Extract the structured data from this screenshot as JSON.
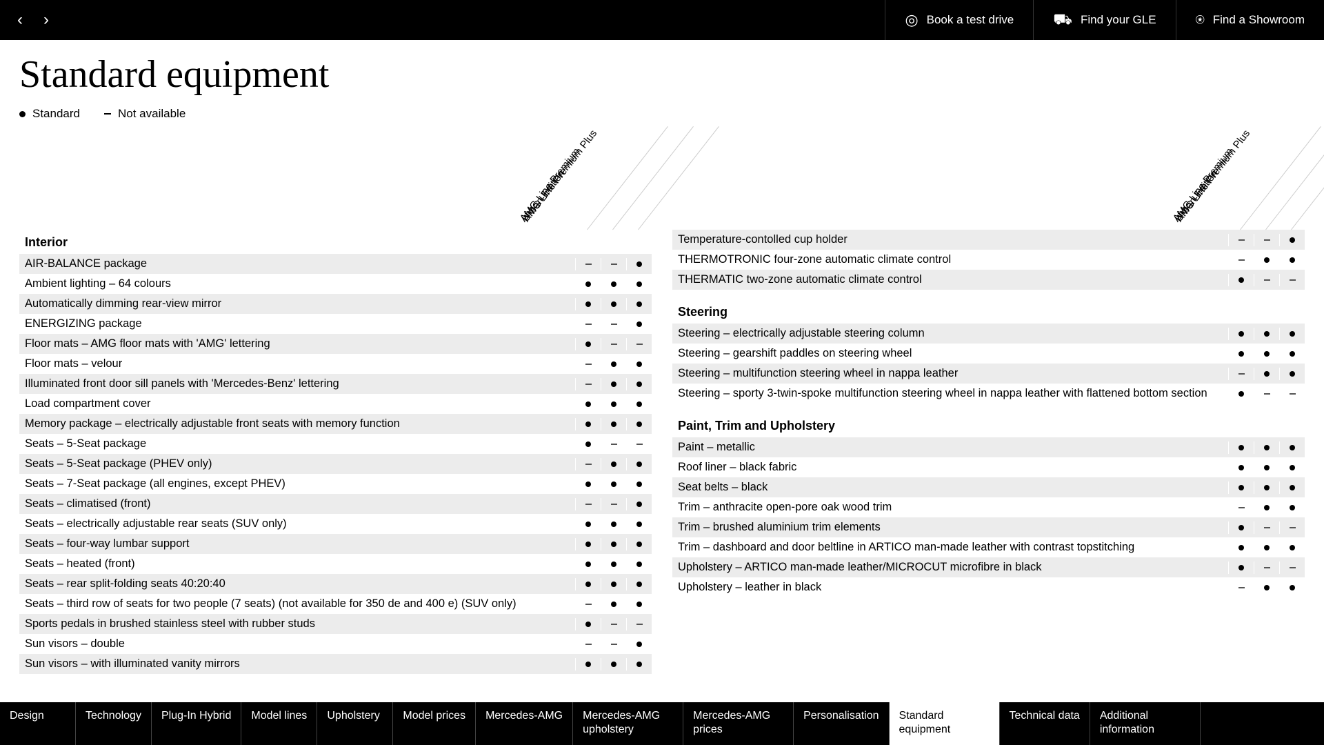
{
  "topbar": {
    "items": [
      {
        "icon": "steering",
        "label": "Book a test drive"
      },
      {
        "icon": "car-search",
        "label": "Find your GLE"
      },
      {
        "icon": "pin",
        "label": "Find a Showroom"
      }
    ]
  },
  "page_title": "Standard equipment",
  "legend": {
    "standard": "Standard",
    "not_available": "Not available"
  },
  "trim_headers": [
    "Urban Edition",
    "AMG Line Premium",
    "AMG Line Premium Plus"
  ],
  "left": {
    "sections": [
      {
        "title": "Interior",
        "rows": [
          {
            "label": "AIR-BALANCE package",
            "v": [
              "-",
              "-",
              "•"
            ]
          },
          {
            "label": "Ambient lighting – 64 colours",
            "v": [
              "•",
              "•",
              "•"
            ]
          },
          {
            "label": "Automatically dimming rear-view mirror",
            "v": [
              "•",
              "•",
              "•"
            ]
          },
          {
            "label": "ENERGIZING package",
            "v": [
              "-",
              "-",
              "•"
            ]
          },
          {
            "label": "Floor mats – AMG floor mats with 'AMG' lettering",
            "v": [
              "•",
              "-",
              "-"
            ]
          },
          {
            "label": "Floor mats – velour",
            "v": [
              "-",
              "•",
              "•"
            ]
          },
          {
            "label": "Illuminated front door sill panels with 'Mercedes-Benz' lettering",
            "v": [
              "-",
              "•",
              "•"
            ]
          },
          {
            "label": "Load compartment cover",
            "v": [
              "•",
              "•",
              "•"
            ]
          },
          {
            "label": "Memory package – electrically adjustable front seats with memory function",
            "v": [
              "•",
              "•",
              "•"
            ]
          },
          {
            "label": "Seats – 5-Seat package",
            "v": [
              "•",
              "-",
              "-"
            ]
          },
          {
            "label": "Seats – 5-Seat package (PHEV only)",
            "v": [
              "-",
              "•",
              "•"
            ]
          },
          {
            "label": "Seats – 7-Seat package (all engines, except PHEV)",
            "v": [
              "•",
              "•",
              "•"
            ]
          },
          {
            "label": "Seats – climatised (front)",
            "v": [
              "-",
              "-",
              "•"
            ]
          },
          {
            "label": "Seats – electrically adjustable rear seats (SUV only)",
            "v": [
              "•",
              "•",
              "•"
            ]
          },
          {
            "label": "Seats – four-way lumbar support",
            "v": [
              "•",
              "•",
              "•"
            ]
          },
          {
            "label": "Seats – heated (front)",
            "v": [
              "•",
              "•",
              "•"
            ]
          },
          {
            "label": "Seats – rear split-folding seats 40:20:40",
            "v": [
              "•",
              "•",
              "•"
            ]
          },
          {
            "label": "Seats – third row of seats for two people (7 seats) (not available for 350 de and 400 e) (SUV only)",
            "v": [
              "-",
              "•",
              "•"
            ]
          },
          {
            "label": "Sports pedals in brushed stainless steel with rubber studs",
            "v": [
              "•",
              "-",
              "-"
            ]
          },
          {
            "label": "Sun visors – double",
            "v": [
              "-",
              "-",
              "•"
            ]
          },
          {
            "label": "Sun visors – with illuminated vanity mirrors",
            "v": [
              "•",
              "•",
              "•"
            ]
          }
        ]
      }
    ]
  },
  "right": {
    "sections": [
      {
        "title": "",
        "rows": [
          {
            "label": "Temperature-contolled cup holder",
            "v": [
              "-",
              "-",
              "•"
            ]
          },
          {
            "label": "THERMOTRONIC four-zone automatic climate control",
            "v": [
              "-",
              "•",
              "•"
            ]
          },
          {
            "label": "THERMATIC two-zone automatic climate control",
            "v": [
              "•",
              "-",
              "-"
            ]
          }
        ]
      },
      {
        "title": "Steering",
        "rows": [
          {
            "label": "Steering – electrically adjustable steering column",
            "v": [
              "•",
              "•",
              "•"
            ]
          },
          {
            "label": "Steering – gearshift paddles on steering wheel",
            "v": [
              "•",
              "•",
              "•"
            ]
          },
          {
            "label": "Steering – multifunction steering wheel in nappa leather",
            "v": [
              "-",
              "•",
              "•"
            ]
          },
          {
            "label": "Steering – sporty 3-twin-spoke multifunction steering wheel in nappa leather with flattened bottom section",
            "v": [
              "•",
              "-",
              "-"
            ]
          }
        ]
      },
      {
        "title": "Paint, Trim and Upholstery",
        "rows": [
          {
            "label": "Paint – metallic",
            "v": [
              "•",
              "•",
              "•"
            ]
          },
          {
            "label": "Roof liner – black fabric",
            "v": [
              "•",
              "•",
              "•"
            ]
          },
          {
            "label": "Seat belts – black",
            "v": [
              "•",
              "•",
              "•"
            ]
          },
          {
            "label": "Trim – anthracite open-pore oak wood trim",
            "v": [
              "-",
              "•",
              "•"
            ]
          },
          {
            "label": "Trim – brushed aluminium trim elements",
            "v": [
              "•",
              "-",
              "-"
            ]
          },
          {
            "label": "Trim – dashboard and door beltline in ARTICO man-made leather with contrast topstitching",
            "v": [
              "•",
              "•",
              "•"
            ]
          },
          {
            "label": "Upholstery – ARTICO man-made leather/MICROCUT microfibre in black",
            "v": [
              "•",
              "-",
              "-"
            ]
          },
          {
            "label": "Upholstery – leather in black",
            "v": [
              "-",
              "•",
              "•"
            ]
          }
        ]
      }
    ]
  },
  "bottomnav": [
    {
      "label": "Design",
      "active": false
    },
    {
      "label": "Technology",
      "active": false
    },
    {
      "label": "Plug-In Hybrid",
      "active": false
    },
    {
      "label": "Model lines",
      "active": false
    },
    {
      "label": "Upholstery",
      "active": false
    },
    {
      "label": "Model prices",
      "active": false
    },
    {
      "label": "Mercedes-AMG",
      "active": false
    },
    {
      "label": "Mercedes-AMG upholstery",
      "active": false
    },
    {
      "label": "Mercedes-AMG prices",
      "active": false
    },
    {
      "label": "Personalisation",
      "active": false
    },
    {
      "label": "Standard equipment",
      "active": true
    },
    {
      "label": "Technical data",
      "active": false
    },
    {
      "label": "Additional information",
      "active": false
    }
  ]
}
